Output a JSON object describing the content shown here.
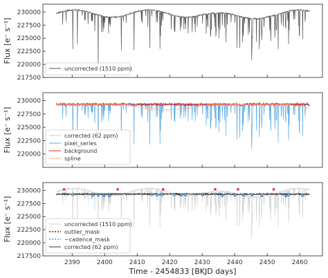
{
  "chart_data": [
    {
      "type": "line",
      "panel": "top",
      "ylabel": "Flux [e⁻ s⁻¹]",
      "ylim": [
        217500,
        231500
      ],
      "yticks": [
        217500,
        220000,
        222500,
        225000,
        227500,
        230000
      ],
      "xlim": [
        2381,
        2467
      ],
      "legend_placement": "lower-left",
      "series": [
        {
          "name": "uncorrected (1510 ppm)",
          "color": "#555555",
          "style": "solid"
        }
      ]
    },
    {
      "type": "line",
      "panel": "middle",
      "ylabel": "Flux [e⁻ s⁻¹]",
      "ylim": [
        217500,
        231500
      ],
      "yticks": [
        220000,
        222500,
        225000,
        227500,
        230000
      ],
      "xlim": [
        2381,
        2467
      ],
      "legend_placement": "lower-left",
      "series": [
        {
          "name": "corrected (62 ppm)",
          "color": "#c8c8c8",
          "style": "solid"
        },
        {
          "name": "pixel_series",
          "color": "#5aa9e6",
          "style": "solid"
        },
        {
          "name": "background",
          "color": "#d62728",
          "style": "solid"
        },
        {
          "name": "spline",
          "color": "#ffb36b",
          "style": "solid"
        }
      ]
    },
    {
      "type": "line",
      "panel": "bottom",
      "ylabel": "Flux [e⁻ s⁻¹]",
      "xlabel": "Time - 2454833 [BKJD days]",
      "ylim": [
        217500,
        231500
      ],
      "yticks": [
        217500,
        220000,
        222500,
        225000,
        227500,
        230000
      ],
      "xlim": [
        2381,
        2467
      ],
      "xticks": [
        2390,
        2400,
        2410,
        2420,
        2430,
        2440,
        2450,
        2460
      ],
      "legend_placement": "lower-left",
      "series": [
        {
          "name": "uncorrected (1510 ppm)",
          "color": "#d0d0d0",
          "style": "solid"
        },
        {
          "name": "outlier_mask",
          "color": "#e03030",
          "style": "dotted"
        },
        {
          "name": "~cadence_mask",
          "color": "#6ec0ea",
          "style": "dotted"
        },
        {
          "name": "corrected (62 ppm)",
          "color": "#333333",
          "style": "solid"
        }
      ]
    }
  ]
}
